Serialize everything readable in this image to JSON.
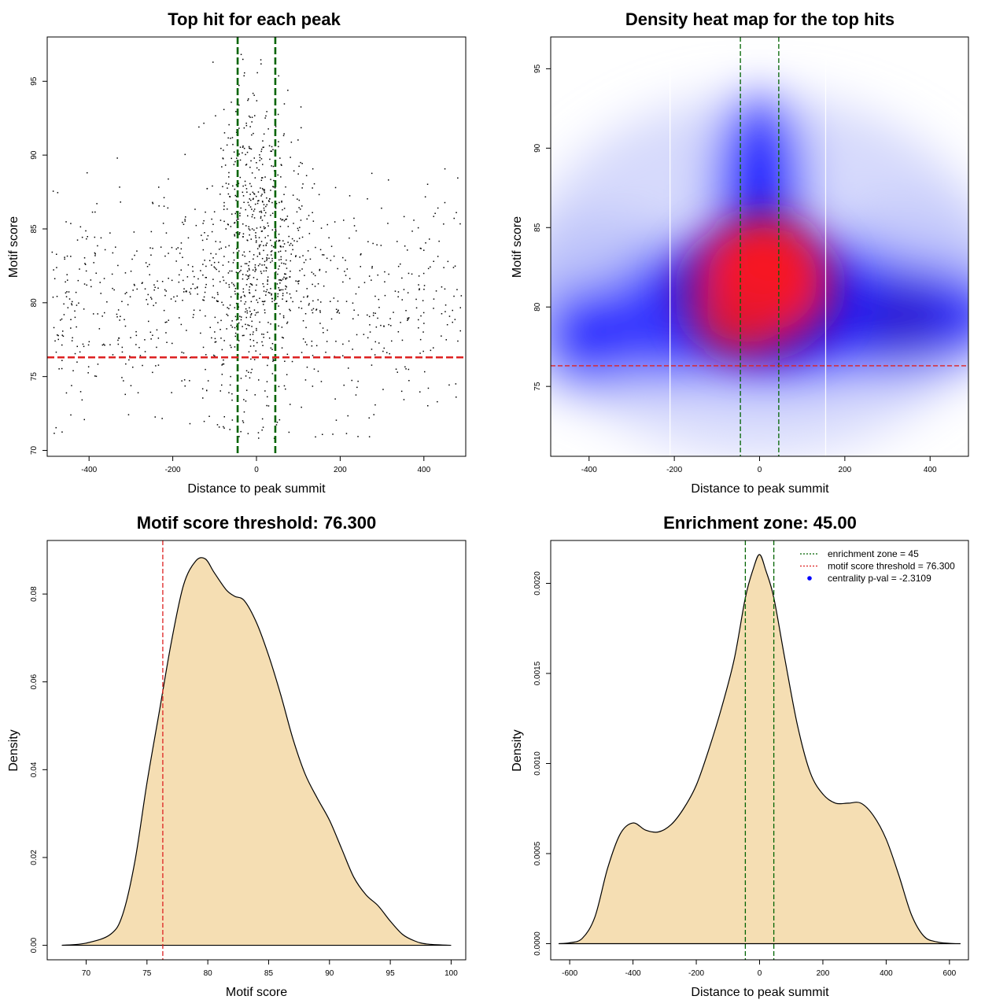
{
  "chart_data": [
    {
      "type": "scatter",
      "title": "Top hit for each peak",
      "xlabel": "Distance to peak summit",
      "ylabel": "Motif score",
      "xlim": [
        -500,
        500
      ],
      "ylim": [
        69.6,
        98.0
      ],
      "xticks": [
        -400,
        -200,
        0,
        200,
        400
      ],
      "yticks": [
        70,
        75,
        80,
        85,
        90,
        95
      ],
      "grid": false,
      "vlines": [
        {
          "x": -45,
          "color": "#006400",
          "style": "dashed"
        },
        {
          "x": 45,
          "color": "#006400",
          "style": "dashed"
        }
      ],
      "hlines": [
        {
          "y": 76.3,
          "color": "#dd2222",
          "style": "dashed"
        }
      ],
      "points_note": "approx. 1,400 points; centred near x=0, y=82; y range 70.7-97"
    },
    {
      "type": "heatmap",
      "title": "Density heat map for the top hits",
      "xlabel": "Distance to peak summit",
      "ylabel": "Motif score",
      "xlim": [
        -490,
        490
      ],
      "ylim": [
        70.6,
        97.0
      ],
      "xticks": [
        -400,
        -200,
        0,
        200,
        400
      ],
      "yticks": [
        75,
        80,
        85,
        90,
        95
      ],
      "colorscale": [
        "#ffffff",
        "#0000ff",
        "#ff0000"
      ],
      "density_peaks": [
        {
          "x": 10,
          "y": 82,
          "level": "high",
          "color": "red"
        },
        {
          "x": -400,
          "y": 78.5,
          "level": "medium",
          "color": "blue"
        },
        {
          "x": 330,
          "y": 79.5,
          "level": "medium",
          "color": "blue"
        },
        {
          "x": 0,
          "y": 89,
          "level": "medium",
          "color": "blue"
        }
      ],
      "vlines": [
        {
          "x": -45,
          "color": "#006400",
          "style": "dashed"
        },
        {
          "x": 45,
          "color": "#006400",
          "style": "dashed"
        }
      ],
      "hlines": [
        {
          "y": 76.3,
          "color": "#dd2222",
          "style": "dashed"
        }
      ],
      "white_lines_x": [
        -210,
        155
      ]
    },
    {
      "type": "area",
      "title": "Motif score threshold: 76.300",
      "xlabel": "Motif score",
      "ylabel": "Density",
      "xlim": [
        66.8,
        101.2
      ],
      "ylim": [
        -0.0033,
        0.0922
      ],
      "xticks": [
        70,
        75,
        80,
        85,
        90,
        95,
        100
      ],
      "yticks": [
        0.0,
        0.02,
        0.04,
        0.06,
        0.08
      ],
      "ytick_labels": [
        "0.00",
        "0.02",
        "0.04",
        "0.06",
        "0.08"
      ],
      "fill": "#f5deb3",
      "x": [
        68,
        70,
        72,
        73,
        74,
        75,
        76,
        77,
        78,
        79,
        79.8,
        80.5,
        81.5,
        82.2,
        83,
        84,
        85,
        86,
        87,
        88,
        89,
        90,
        91,
        92,
        93,
        94,
        95,
        96,
        97,
        98,
        100
      ],
      "y": [
        0,
        0.0005,
        0.0025,
        0.007,
        0.019,
        0.037,
        0.053,
        0.069,
        0.082,
        0.0875,
        0.088,
        0.085,
        0.081,
        0.0795,
        0.0785,
        0.0735,
        0.066,
        0.057,
        0.047,
        0.039,
        0.0335,
        0.0285,
        0.022,
        0.0155,
        0.0115,
        0.009,
        0.0055,
        0.0025,
        0.001,
        0.0003,
        0
      ],
      "vlines": [
        {
          "x": 76.3,
          "color": "#dd2222",
          "style": "dashed"
        }
      ]
    },
    {
      "type": "area",
      "title": "Enrichment zone: 45.00",
      "xlabel": "Distance to peak summit",
      "ylabel": "Density",
      "xlim": [
        -660,
        660
      ],
      "ylim": [
        -8.95e-05,
        0.002238
      ],
      "xticks": [
        -600,
        -400,
        -200,
        0,
        200,
        400,
        600
      ],
      "yticks": [
        0.0,
        0.0005,
        0.001,
        0.0015,
        0.002
      ],
      "ytick_labels": [
        "0.0000",
        "0.0005",
        "0.0010",
        "0.0015",
        "0.0020"
      ],
      "fill": "#f5deb3",
      "x": [
        -635,
        -600,
        -560,
        -520,
        -480,
        -440,
        -400,
        -360,
        -320,
        -280,
        -240,
        -200,
        -160,
        -120,
        -80,
        -45,
        -20,
        0,
        20,
        45,
        80,
        120,
        160,
        200,
        240,
        280,
        320,
        360,
        400,
        440,
        480,
        520,
        560,
        600,
        635
      ],
      "y": [
        0,
        5e-06,
        3e-05,
        0.00015,
        0.00042,
        0.00061,
        0.00067,
        0.00063,
        0.00062,
        0.00066,
        0.00075,
        0.00088,
        0.00108,
        0.00131,
        0.00158,
        0.00192,
        0.00208,
        0.00216,
        0.00207,
        0.00192,
        0.00158,
        0.00121,
        0.00095,
        0.00083,
        0.00078,
        0.00078,
        0.00078,
        0.00071,
        0.00058,
        0.00038,
        0.00016,
        4e-05,
        1e-05,
        2e-06,
        0
      ],
      "vlines": [
        {
          "x": -45,
          "color": "#006400",
          "style": "dashed"
        },
        {
          "x": 45,
          "color": "#006400",
          "style": "dashed"
        }
      ],
      "legend": {
        "position": "top-right",
        "entries": [
          {
            "label": "enrichment zone = 45",
            "color": "#006400",
            "kind": "line"
          },
          {
            "label": "motif score threshold = 76.300",
            "color": "#dd2222",
            "kind": "line"
          },
          {
            "label": "centrality p-val = -2.3109",
            "color": "#0000ff",
            "kind": "point"
          }
        ]
      }
    }
  ]
}
